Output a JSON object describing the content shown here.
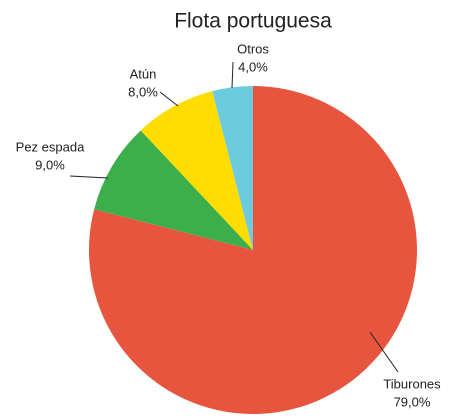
{
  "chart_data": {
    "type": "pie",
    "title": "Flota portuguesa",
    "categories": [
      "Tiburones",
      "Pez espada",
      "Atún",
      "Otros"
    ],
    "values": [
      79,
      9,
      8,
      4
    ],
    "value_labels": [
      "79,0%",
      "9,0%",
      "8,0%",
      "4,0%"
    ],
    "colors": [
      "#e8553f",
      "#3cae4a",
      "#ffdd00",
      "#6ccbdc"
    ]
  }
}
